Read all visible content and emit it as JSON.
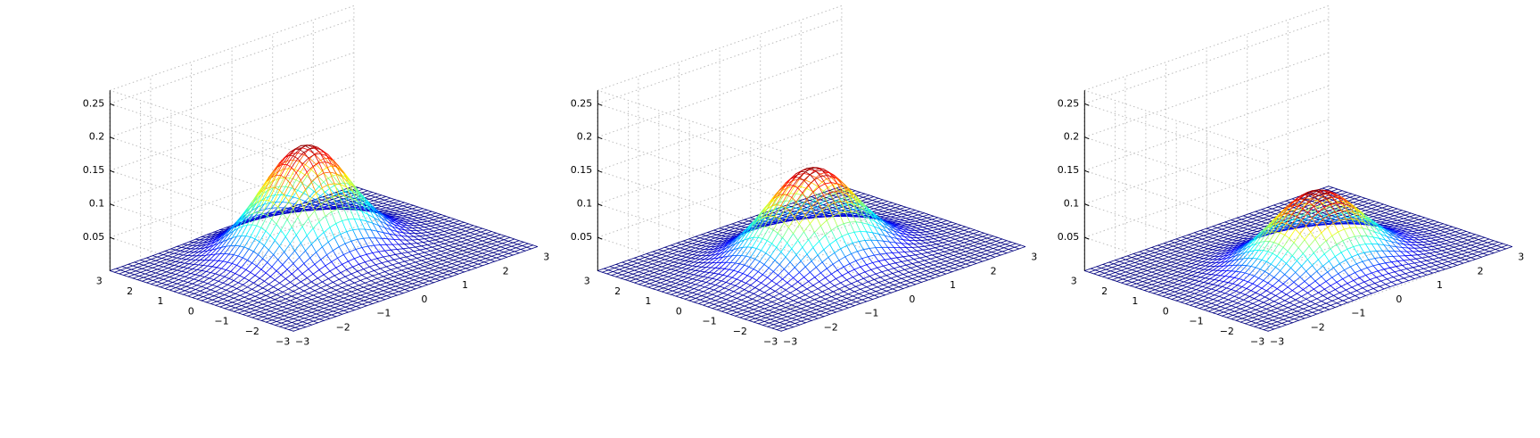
{
  "chart_data": [
    {
      "type": "surface",
      "title": "",
      "xlabel": "",
      "ylabel": "",
      "zlabel": "",
      "xlim": [
        -3,
        3
      ],
      "ylim": [
        -3,
        3
      ],
      "zlim": [
        0,
        0.27
      ],
      "x_ticks": [
        "−3",
        "−2",
        "−1",
        "0",
        "1",
        "2",
        "3"
      ],
      "y_ticks": [
        "−3",
        "−2",
        "−1",
        "0",
        "1",
        "2",
        "3"
      ],
      "z_ticks": [
        "0.05",
        "0.1",
        "0.15",
        "0.2",
        "0.25"
      ],
      "grid": true,
      "colormap": "jet",
      "peak": {
        "x": 0,
        "y": 0.6,
        "z": 0.16
      },
      "sigma": {
        "x": 0.9,
        "y": 0.9
      },
      "mesh_points": 41
    },
    {
      "type": "surface",
      "title": "",
      "xlabel": "",
      "ylabel": "",
      "zlabel": "",
      "xlim": [
        -3,
        3
      ],
      "ylim": [
        -3,
        3
      ],
      "zlim": [
        0,
        0.27
      ],
      "x_ticks": [
        "−3",
        "−2",
        "−1",
        "0",
        "1",
        "2",
        "3"
      ],
      "y_ticks": [
        "−3",
        "−2",
        "−1",
        "0",
        "1",
        "2",
        "3"
      ],
      "z_ticks": [
        "0.05",
        "0.1",
        "0.15",
        "0.2",
        "0.25"
      ],
      "grid": true,
      "colormap": "jet",
      "peak": {
        "x": 0,
        "y": 0,
        "z": 0.135
      },
      "sigma": {
        "x": 0.9,
        "y": 0.9
      },
      "mesh_points": 41
    },
    {
      "type": "surface",
      "title": "",
      "xlabel": "",
      "ylabel": "",
      "zlabel": "",
      "xlim": [
        -3,
        3
      ],
      "ylim": [
        -3,
        3
      ],
      "zlim": [
        0,
        0.27
      ],
      "x_ticks": [
        "−3",
        "−2",
        "−1",
        "0",
        "1",
        "2",
        "3"
      ],
      "y_ticks": [
        "−3",
        "−2",
        "−1",
        "0",
        "1",
        "2",
        "3"
      ],
      "z_ticks": [
        "0.05",
        "0.1",
        "0.15",
        "0.2",
        "0.25"
      ],
      "grid": true,
      "colormap": "jet",
      "peak": {
        "x": 0,
        "y": -0.6,
        "z": 0.11
      },
      "sigma": {
        "x": 0.9,
        "y": 0.9
      },
      "mesh_points": 41
    }
  ]
}
